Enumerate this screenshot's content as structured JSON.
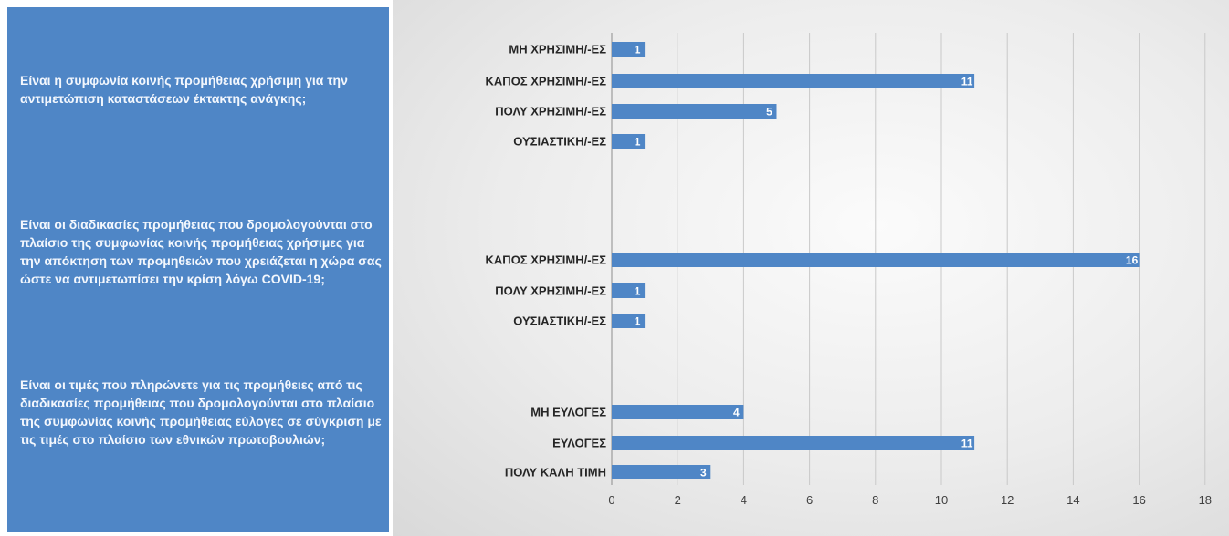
{
  "questions": [
    "Είναι η συμφωνία κοινής προμήθειας χρήσιμη για την αντιμετώπιση καταστάσεων έκτακτης ανάγκης;",
    "Είναι οι διαδικασίες προμήθειας που δρομολογούνται στο πλαίσιο της συμφωνίας κοινής προμήθειας χρήσιμες για την απόκτηση των προμηθειών που χρειάζεται η χώρα σας ώστε να αντιμετωπίσει την κρίση λόγω COVID-19;",
    "Είναι οι τιμές που πληρώνετε για τις προμήθειες από τις διαδικασίες προμήθειας που δρομολογούνται στο πλαίσιο της συμφωνίας κοινής προμήθειας εύλογες σε σύγκριση με τις τιμές στο πλαίσιο των εθνικών πρωτοβουλιών;"
  ],
  "chart_data": {
    "type": "bar",
    "orientation": "horizontal",
    "bar_color": "#4f86c6",
    "xlim": [
      0,
      18
    ],
    "xticks": [
      0,
      2,
      4,
      6,
      8,
      10,
      12,
      14,
      16,
      18
    ],
    "grid": true,
    "groups": [
      {
        "categories": [
          "ΜΗ ΧΡΗΣΙΜΗ/-ΕΣ",
          "ΚΑΠΟΣ ΧΡΗΣΙΜΗ/-ΕΣ",
          "ΠΟΛΥ ΧΡΗΣΙΜΗ/-ΕΣ",
          "ΟΥΣΙΑΣΤΙΚΗ/-ΕΣ"
        ],
        "values": [
          1,
          11,
          5,
          1
        ]
      },
      {
        "categories": [
          "ΚΑΠΟΣ ΧΡΗΣΙΜΗ/-ΕΣ",
          "ΠΟΛΥ ΧΡΗΣΙΜΗ/-ΕΣ",
          "ΟΥΣΙΑΣΤΙΚΗ/-ΕΣ"
        ],
        "values": [
          16,
          1,
          1
        ]
      },
      {
        "categories": [
          "ΜΗ ΕΥΛΟΓΕΣ",
          "ΕΥΛΟΓΕΣ",
          "ΠΟΛΥ ΚΑΛΗ ΤΙΜΗ"
        ],
        "values": [
          4,
          11,
          3
        ]
      }
    ]
  }
}
